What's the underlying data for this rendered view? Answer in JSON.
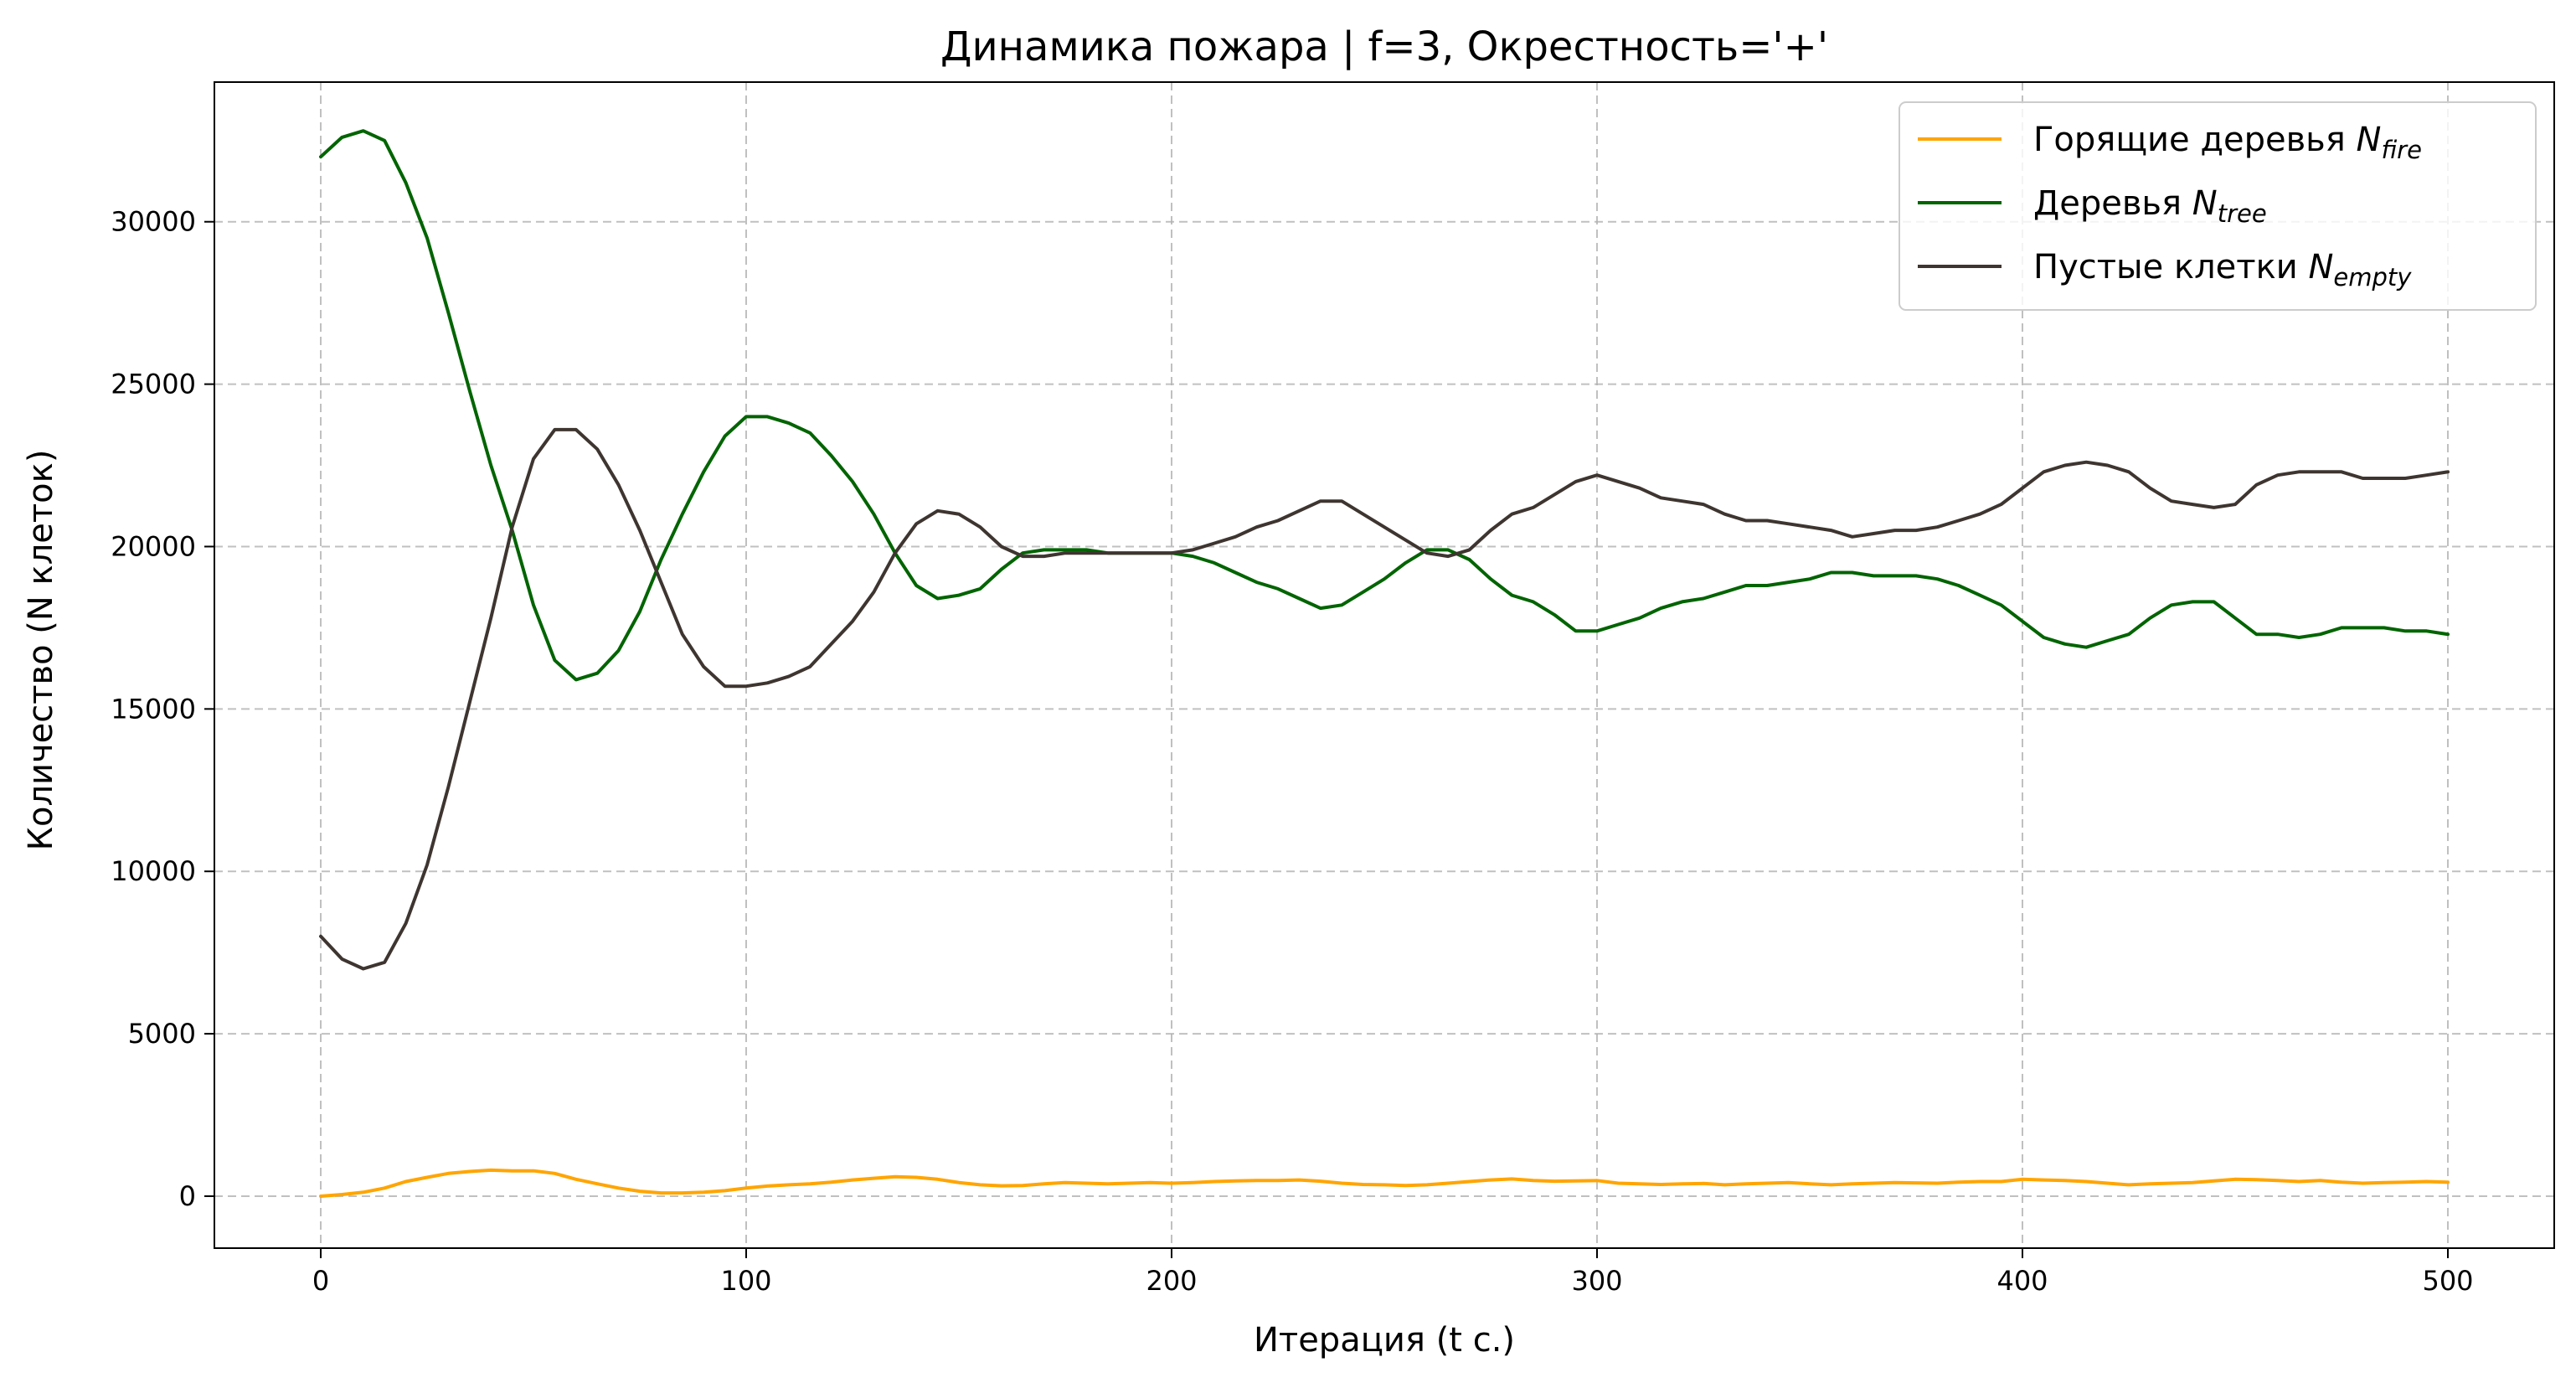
{
  "chart_data": {
    "type": "line",
    "title": "Динамика пожара | f=3, Окрестность='+'",
    "xlabel": "Итерация (t с.)",
    "ylabel": "Количество (N клеток)",
    "xlim": [
      -25,
      525
    ],
    "ylim": [
      -1600,
      34300
    ],
    "xticks": [
      0,
      100,
      200,
      300,
      400,
      500
    ],
    "yticks": [
      0,
      5000,
      10000,
      15000,
      20000,
      25000,
      30000
    ],
    "grid": true,
    "legend_position": "top-right",
    "series": [
      {
        "key": "fire",
        "label_main": "Горящие деревья ",
        "label_var": "N",
        "label_sub": "fire",
        "color": "#ffa500",
        "x": [
          0,
          5,
          10,
          15,
          20,
          25,
          30,
          35,
          40,
          45,
          50,
          55,
          60,
          65,
          70,
          75,
          80,
          85,
          90,
          95,
          100,
          105,
          110,
          115,
          120,
          125,
          130,
          135,
          140,
          145,
          150,
          155,
          160,
          165,
          170,
          175,
          180,
          185,
          190,
          195,
          200,
          205,
          210,
          215,
          220,
          225,
          230,
          235,
          240,
          245,
          250,
          255,
          260,
          265,
          270,
          275,
          280,
          285,
          290,
          295,
          300,
          305,
          310,
          315,
          320,
          325,
          330,
          335,
          340,
          345,
          350,
          355,
          360,
          365,
          370,
          375,
          380,
          385,
          390,
          395,
          400,
          405,
          410,
          415,
          420,
          425,
          430,
          435,
          440,
          445,
          450,
          455,
          460,
          465,
          470,
          475,
          480,
          485,
          490,
          495,
          500
        ],
        "values": [
          0,
          50,
          120,
          250,
          450,
          580,
          700,
          760,
          800,
          780,
          780,
          700,
          520,
          380,
          250,
          150,
          100,
          100,
          120,
          170,
          250,
          310,
          350,
          380,
          430,
          500,
          550,
          600,
          580,
          520,
          420,
          350,
          320,
          330,
          380,
          420,
          400,
          380,
          400,
          420,
          400,
          420,
          450,
          470,
          480,
          480,
          500,
          460,
          400,
          360,
          350,
          330,
          350,
          400,
          450,
          500,
          530,
          480,
          460,
          470,
          480,
          400,
          380,
          360,
          380,
          390,
          350,
          380,
          400,
          420,
          380,
          350,
          380,
          400,
          420,
          410,
          400,
          430,
          450,
          450,
          520,
          500,
          480,
          450,
          400,
          350,
          380,
          400,
          420,
          470,
          520,
          510,
          480,
          450,
          480,
          430,
          400,
          420,
          430,
          450,
          430
        ]
      },
      {
        "key": "tree",
        "label_main": "Деревья ",
        "label_var": "N",
        "label_sub": "tree",
        "color": "#006400",
        "x": [
          0,
          5,
          10,
          15,
          20,
          25,
          30,
          35,
          40,
          45,
          50,
          55,
          60,
          65,
          70,
          75,
          80,
          85,
          90,
          95,
          100,
          105,
          110,
          115,
          120,
          125,
          130,
          135,
          140,
          145,
          150,
          155,
          160,
          165,
          170,
          175,
          180,
          185,
          190,
          195,
          200,
          205,
          210,
          215,
          220,
          225,
          230,
          235,
          240,
          245,
          250,
          255,
          260,
          265,
          270,
          275,
          280,
          285,
          290,
          295,
          300,
          305,
          310,
          315,
          320,
          325,
          330,
          335,
          340,
          345,
          350,
          355,
          360,
          365,
          370,
          375,
          380,
          385,
          390,
          395,
          400,
          405,
          410,
          415,
          420,
          425,
          430,
          435,
          440,
          445,
          450,
          455,
          460,
          465,
          470,
          475,
          480,
          485,
          490,
          495,
          500
        ],
        "values": [
          32000,
          32600,
          32800,
          32500,
          31200,
          29500,
          27200,
          24800,
          22500,
          20500,
          18200,
          16500,
          15900,
          16100,
          16800,
          18000,
          19600,
          21000,
          22300,
          23400,
          24000,
          24000,
          23800,
          23500,
          22800,
          22000,
          21000,
          19800,
          18800,
          18400,
          18500,
          18700,
          19300,
          19800,
          19900,
          19900,
          19900,
          19800,
          19800,
          19800,
          19800,
          19700,
          19500,
          19200,
          18900,
          18700,
          18400,
          18100,
          18200,
          18600,
          19000,
          19500,
          19900,
          19900,
          19600,
          19000,
          18500,
          18300,
          17900,
          17400,
          17400,
          17600,
          17800,
          18100,
          18300,
          18400,
          18600,
          18800,
          18800,
          18900,
          19000,
          19200,
          19200,
          19100,
          19100,
          19100,
          19000,
          18800,
          18500,
          18200,
          17700,
          17200,
          17000,
          16900,
          17100,
          17300,
          17800,
          18200,
          18300,
          18300,
          17800,
          17300,
          17300,
          17200,
          17300,
          17500,
          17500,
          17500,
          17400,
          17400,
          17300
        ]
      },
      {
        "key": "empty",
        "label_main": "Пустые клетки ",
        "label_var": "N",
        "label_sub": "empty",
        "color": "#3e3530",
        "x": [
          0,
          5,
          10,
          15,
          20,
          25,
          30,
          35,
          40,
          45,
          50,
          55,
          60,
          65,
          70,
          75,
          80,
          85,
          90,
          95,
          100,
          105,
          110,
          115,
          120,
          125,
          130,
          135,
          140,
          145,
          150,
          155,
          160,
          165,
          170,
          175,
          180,
          185,
          190,
          195,
          200,
          205,
          210,
          215,
          220,
          225,
          230,
          235,
          240,
          245,
          250,
          255,
          260,
          265,
          270,
          275,
          280,
          285,
          290,
          295,
          300,
          305,
          310,
          315,
          320,
          325,
          330,
          335,
          340,
          345,
          350,
          355,
          360,
          365,
          370,
          375,
          380,
          385,
          390,
          395,
          400,
          405,
          410,
          415,
          420,
          425,
          430,
          435,
          440,
          445,
          450,
          455,
          460,
          465,
          470,
          475,
          480,
          485,
          490,
          495,
          500
        ],
        "values": [
          8000,
          7300,
          7000,
          7200,
          8400,
          10200,
          12600,
          15200,
          17800,
          20600,
          22700,
          23600,
          23600,
          23000,
          21900,
          20500,
          18900,
          17300,
          16300,
          15700,
          15700,
          15800,
          16000,
          16300,
          17000,
          17700,
          18600,
          19800,
          20700,
          21100,
          21000,
          20600,
          20000,
          19700,
          19700,
          19800,
          19800,
          19800,
          19800,
          19800,
          19800,
          19900,
          20100,
          20300,
          20600,
          20800,
          21100,
          21400,
          21400,
          21000,
          20600,
          20200,
          19800,
          19700,
          19900,
          20500,
          21000,
          21200,
          21600,
          22000,
          22200,
          22000,
          21800,
          21500,
          21400,
          21300,
          21000,
          20800,
          20800,
          20700,
          20600,
          20500,
          20300,
          20400,
          20500,
          20500,
          20600,
          20800,
          21000,
          21300,
          21800,
          22300,
          22500,
          22600,
          22500,
          22300,
          21800,
          21400,
          21300,
          21200,
          21300,
          21900,
          22200,
          22300,
          22300,
          22300,
          22100,
          22100,
          22100,
          22200,
          22300
        ]
      }
    ]
  }
}
